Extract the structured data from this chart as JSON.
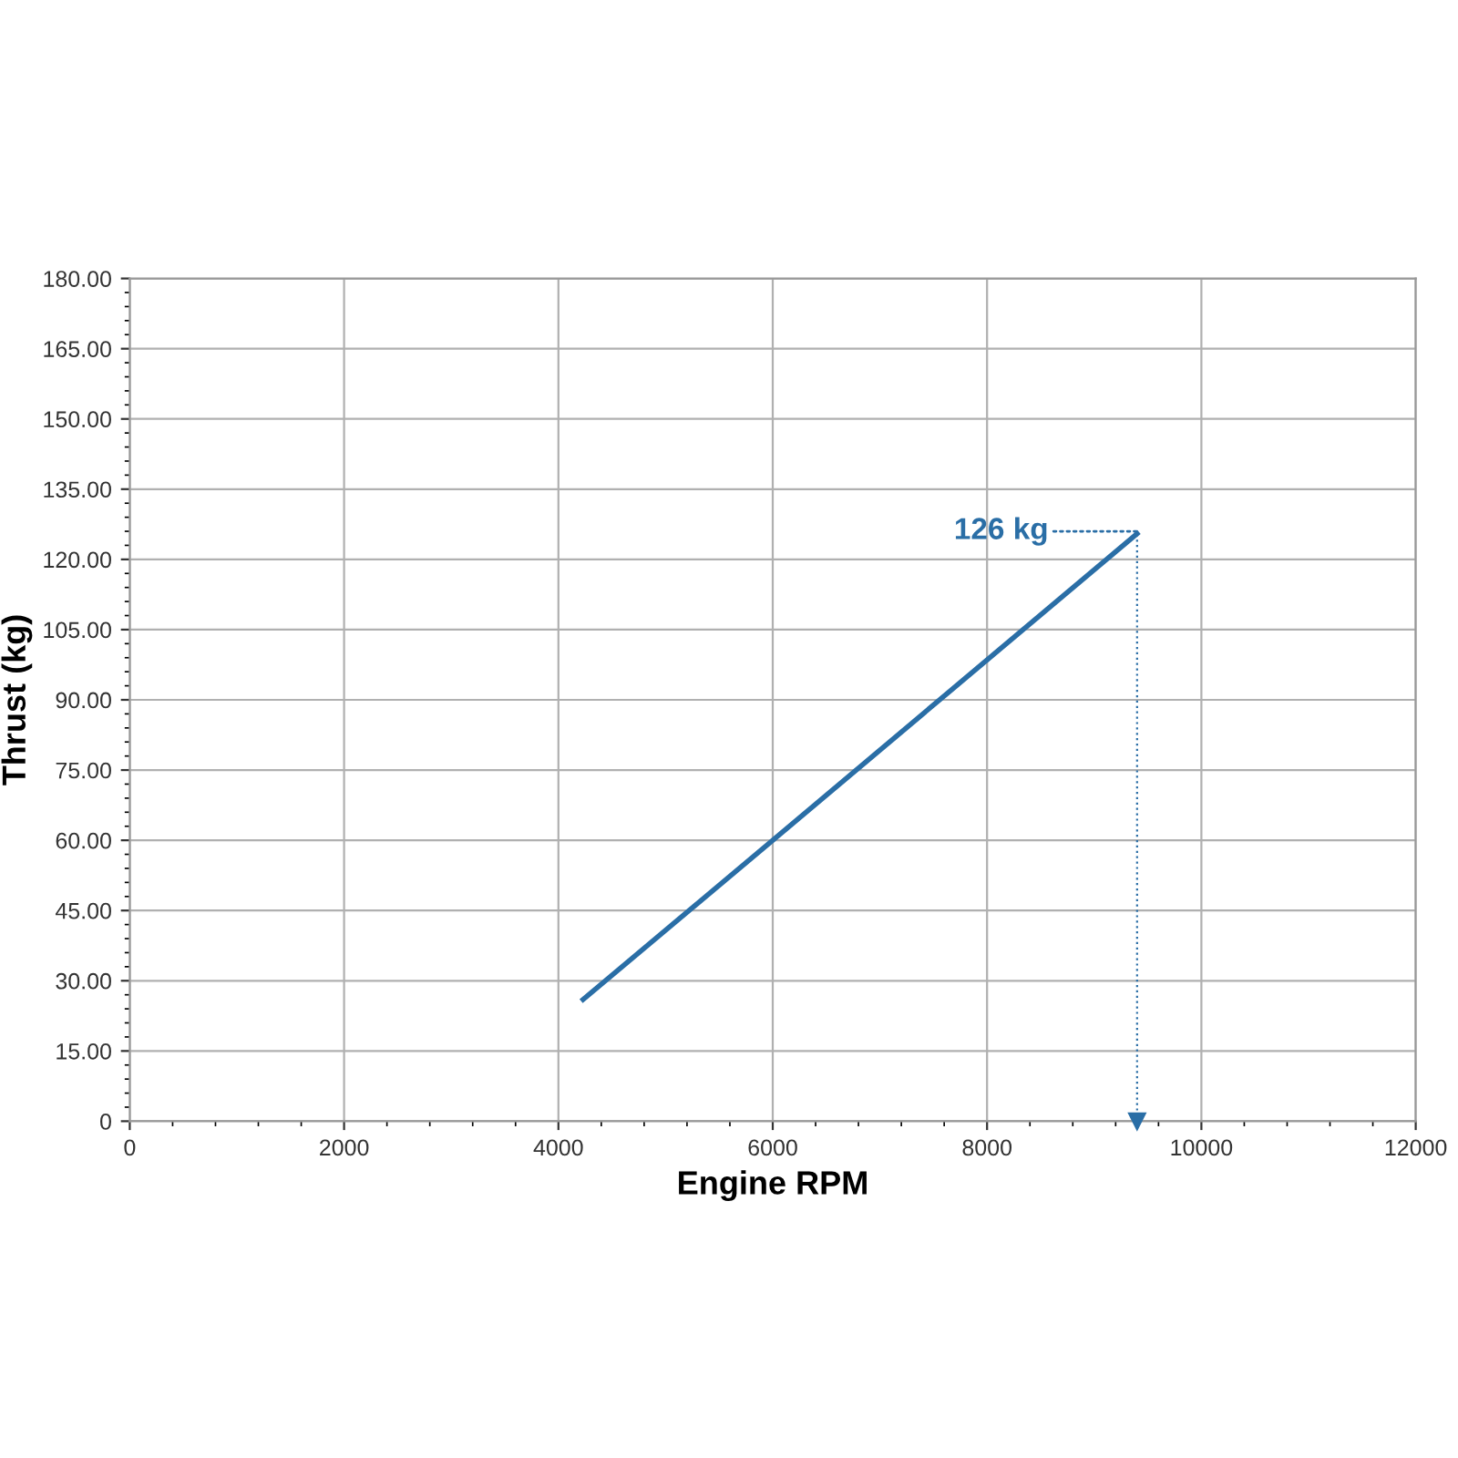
{
  "chart_data": {
    "type": "line",
    "xlabel": "Engine RPM",
    "ylabel": "Thrust (kg)",
    "x": [
      4230,
      6000,
      9400
    ],
    "series": [
      {
        "color": "#2a6ea6",
        "values": [
          26,
          60,
          125.5
        ]
      }
    ],
    "xlim": [
      0,
      12000
    ],
    "xticks": [
      0,
      2000,
      4000,
      6000,
      8000,
      10000,
      12000
    ],
    "ylim": [
      0,
      180
    ],
    "yticks": [
      0,
      {
        "value": 15,
        "label": "15.00"
      },
      {
        "value": 30,
        "label": "30.00"
      },
      {
        "value": 45,
        "label": "45.00"
      },
      {
        "value": 60,
        "label": "60.00"
      },
      {
        "value": 75,
        "label": "75.00"
      },
      {
        "value": 90,
        "label": "90.00"
      },
      {
        "value": 105,
        "label": "105.00"
      },
      {
        "value": 120,
        "label": "120.00"
      },
      {
        "value": 135,
        "label": "135.00"
      },
      {
        "value": 150,
        "label": "150.00"
      },
      {
        "value": 165,
        "label": "165.00"
      },
      {
        "value": 180,
        "label": "180.00"
      }
    ],
    "annotations": [
      {
        "text": "126 kg",
        "x": 9400,
        "y": 126
      }
    ],
    "ref_lines": [
      {
        "axis": "x",
        "value": 9400,
        "color": "#2a6ea6",
        "line_style": "dotted"
      }
    ],
    "grid": true,
    "marker": "none",
    "line_style": "solid"
  }
}
